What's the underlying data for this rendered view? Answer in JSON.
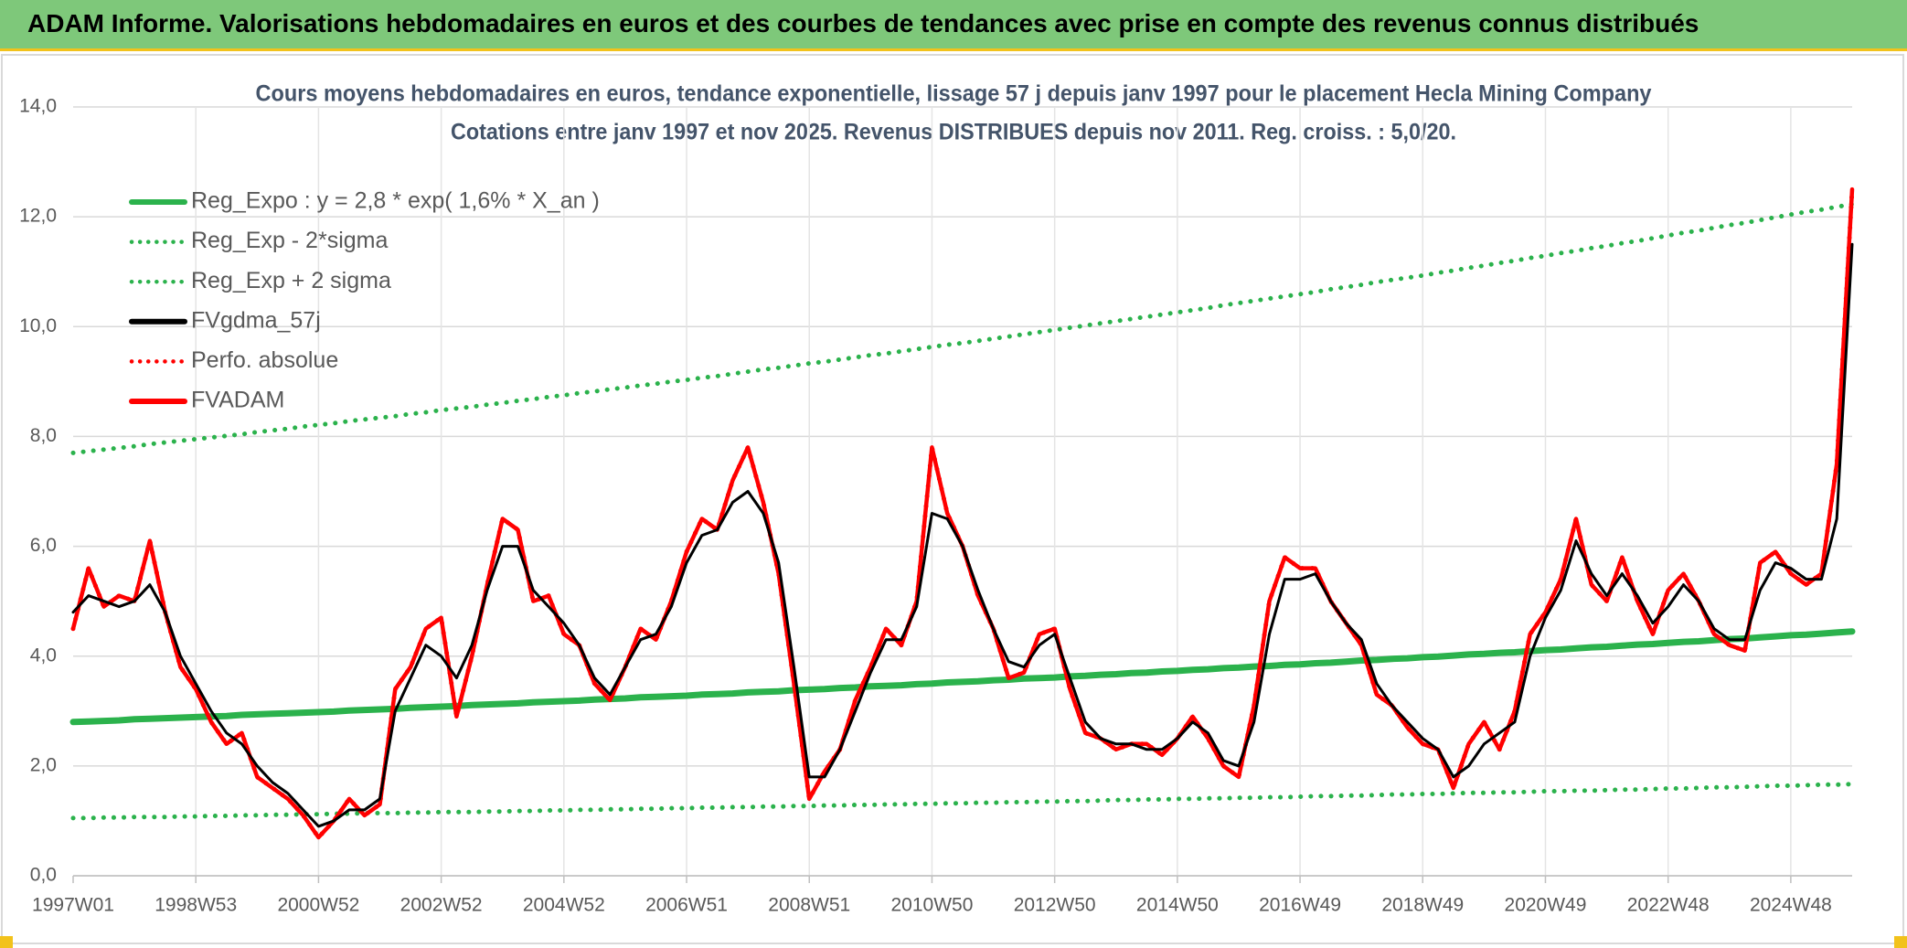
{
  "header": {
    "title": "ADAM Informe. Valorisations hebdomadaires en euros et des courbes de tendances avec prise en compte des revenus connus distribués"
  },
  "chart_data": {
    "type": "line",
    "title": "Cours moyens hebdomadaires en euros, tendance exponentielle, lissage 57 j depuis janv 1997 pour le placement Hecla Mining Company",
    "subtitle": "Cotations entre janv 1997 et nov 2025. Revenus DISTRIBUES depuis nov 2011. Reg. croiss. : 5,0/20.",
    "categories": [
      "1997W01",
      null,
      null,
      null,
      null,
      null,
      null,
      null,
      "1998W53",
      null,
      null,
      null,
      null,
      null,
      null,
      null,
      "2000W52",
      null,
      null,
      null,
      null,
      null,
      null,
      null,
      "2002W52",
      null,
      null,
      null,
      null,
      null,
      null,
      null,
      "2004W52",
      null,
      null,
      null,
      null,
      null,
      null,
      null,
      "2006W51",
      null,
      null,
      null,
      null,
      null,
      null,
      null,
      "2008W51",
      null,
      null,
      null,
      null,
      null,
      null,
      null,
      "2010W50",
      null,
      null,
      null,
      null,
      null,
      null,
      null,
      "2012W50",
      null,
      null,
      null,
      null,
      null,
      null,
      null,
      "2014W50",
      null,
      null,
      null,
      null,
      null,
      null,
      null,
      "2016W49",
      null,
      null,
      null,
      null,
      null,
      null,
      null,
      "2018W49",
      null,
      null,
      null,
      null,
      null,
      null,
      null,
      "2020W49",
      null,
      null,
      null,
      null,
      null,
      null,
      null,
      "2022W48",
      null,
      null,
      null,
      null,
      null,
      null,
      null,
      "2024W48",
      null,
      null,
      null,
      null
    ],
    "ylim": [
      0,
      14
    ],
    "yticks": [
      {
        "value": 0,
        "label": "0,0"
      },
      {
        "value": 2,
        "label": "2,0"
      },
      {
        "value": 4,
        "label": "4,0"
      },
      {
        "value": 6,
        "label": "6,0"
      },
      {
        "value": 8,
        "label": "8,0"
      },
      {
        "value": 10,
        "label": "10,0"
      },
      {
        "value": 12,
        "label": "12,0"
      },
      {
        "value": 14,
        "label": "14,0"
      }
    ],
    "grid": true,
    "legend": "upper left",
    "series": [
      {
        "name": "Reg_Expo : y = 2,8 * exp( 1,6% *  X_an )",
        "color": "#2bb24c",
        "style": "solid",
        "values": [
          2.8,
          2.81,
          2.82,
          2.83,
          2.85,
          2.86,
          2.87,
          2.88,
          2.89,
          2.9,
          2.91,
          2.93,
          2.94,
          2.95,
          2.96,
          2.97,
          2.98,
          2.99,
          3.01,
          3.02,
          3.03,
          3.04,
          3.06,
          3.07,
          3.08,
          3.09,
          3.11,
          3.12,
          3.13,
          3.14,
          3.16,
          3.17,
          3.18,
          3.19,
          3.21,
          3.22,
          3.23,
          3.25,
          3.26,
          3.27,
          3.28,
          3.3,
          3.31,
          3.32,
          3.34,
          3.35,
          3.36,
          3.38,
          3.39,
          3.4,
          3.42,
          3.43,
          3.45,
          3.46,
          3.47,
          3.49,
          3.5,
          3.52,
          3.53,
          3.54,
          3.56,
          3.57,
          3.59,
          3.6,
          3.61,
          3.63,
          3.64,
          3.66,
          3.67,
          3.69,
          3.7,
          3.72,
          3.73,
          3.75,
          3.76,
          3.78,
          3.79,
          3.81,
          3.82,
          3.84,
          3.85,
          3.87,
          3.88,
          3.9,
          3.92,
          3.93,
          3.95,
          3.96,
          3.98,
          3.99,
          4.01,
          4.03,
          4.04,
          4.06,
          4.07,
          4.09,
          4.11,
          4.12,
          4.14,
          4.16,
          4.17,
          4.19,
          4.21,
          4.22,
          4.24,
          4.26,
          4.27,
          4.29,
          4.31,
          4.32,
          4.34,
          4.36,
          4.38,
          4.39,
          4.41,
          4.43,
          4.45
        ]
      },
      {
        "name": "Reg_Exp - 2*sigma",
        "color": "#2bb24c",
        "style": "dotted",
        "values": [
          1.05,
          1.05,
          1.06,
          1.06,
          1.07,
          1.07,
          1.07,
          1.08,
          1.08,
          1.09,
          1.09,
          1.1,
          1.1,
          1.11,
          1.11,
          1.12,
          1.12,
          1.13,
          1.13,
          1.14,
          1.14,
          1.14,
          1.15,
          1.15,
          1.16,
          1.16,
          1.16,
          1.17,
          1.17,
          1.18,
          1.18,
          1.19,
          1.19,
          1.2,
          1.2,
          1.21,
          1.21,
          1.22,
          1.22,
          1.23,
          1.23,
          1.24,
          1.24,
          1.25,
          1.25,
          1.26,
          1.26,
          1.27,
          1.27,
          1.28,
          1.28,
          1.29,
          1.29,
          1.3,
          1.3,
          1.31,
          1.31,
          1.32,
          1.32,
          1.33,
          1.33,
          1.34,
          1.34,
          1.35,
          1.35,
          1.36,
          1.36,
          1.37,
          1.38,
          1.38,
          1.39,
          1.39,
          1.4,
          1.4,
          1.41,
          1.41,
          1.42,
          1.42,
          1.43,
          1.43,
          1.44,
          1.45,
          1.45,
          1.46,
          1.46,
          1.47,
          1.48,
          1.48,
          1.49,
          1.49,
          1.5,
          1.51,
          1.51,
          1.52,
          1.52,
          1.53,
          1.54,
          1.54,
          1.55,
          1.55,
          1.56,
          1.57,
          1.57,
          1.58,
          1.59,
          1.59,
          1.6,
          1.61,
          1.61,
          1.62,
          1.63,
          1.64,
          1.64,
          1.65,
          1.66,
          1.66,
          1.67
        ]
      },
      {
        "name": "Reg_Exp + 2 sigma",
        "color": "#2bb24c",
        "style": "dotted",
        "values": [
          7.7,
          7.73,
          7.76,
          7.79,
          7.82,
          7.86,
          7.89,
          7.92,
          7.95,
          7.98,
          8.01,
          8.04,
          8.08,
          8.11,
          8.14,
          8.18,
          8.21,
          8.24,
          8.28,
          8.31,
          8.34,
          8.37,
          8.41,
          8.44,
          8.48,
          8.51,
          8.54,
          8.58,
          8.61,
          8.65,
          8.68,
          8.72,
          8.75,
          8.79,
          8.82,
          8.86,
          8.89,
          8.93,
          8.96,
          9.0,
          9.03,
          9.07,
          9.1,
          9.14,
          9.18,
          9.22,
          9.25,
          9.29,
          9.33,
          9.36,
          9.4,
          9.44,
          9.48,
          9.51,
          9.55,
          9.59,
          9.63,
          9.67,
          9.7,
          9.74,
          9.78,
          9.82,
          9.86,
          9.9,
          9.94,
          9.98,
          10.02,
          10.06,
          10.1,
          10.14,
          10.18,
          10.22,
          10.26,
          10.3,
          10.34,
          10.39,
          10.43,
          10.47,
          10.51,
          10.55,
          10.59,
          10.63,
          10.68,
          10.72,
          10.76,
          10.81,
          10.85,
          10.89,
          10.93,
          10.98,
          11.02,
          11.07,
          11.11,
          11.16,
          11.2,
          11.25,
          11.29,
          11.34,
          11.38,
          11.43,
          11.47,
          11.52,
          11.56,
          11.61,
          11.66,
          11.71,
          11.75,
          11.8,
          11.85,
          11.89,
          11.94,
          11.99,
          12.04,
          12.09,
          12.13,
          12.18,
          12.23
        ]
      },
      {
        "name": "FVgdma_57j",
        "color": "#000000",
        "style": "solid",
        "values": [
          4.8,
          5.1,
          5.0,
          4.9,
          5.0,
          5.3,
          4.8,
          4.0,
          3.5,
          3.0,
          2.6,
          2.4,
          2.0,
          1.7,
          1.5,
          1.2,
          0.9,
          1.0,
          1.2,
          1.2,
          1.4,
          3.0,
          3.6,
          4.2,
          4.0,
          3.6,
          4.2,
          5.2,
          6.0,
          6.0,
          5.2,
          4.9,
          4.6,
          4.2,
          3.6,
          3.3,
          3.8,
          4.3,
          4.4,
          4.9,
          5.7,
          6.2,
          6.3,
          6.8,
          7.0,
          6.6,
          5.7,
          3.8,
          1.8,
          1.8,
          2.3,
          3.0,
          3.7,
          4.3,
          4.3,
          4.9,
          6.6,
          6.5,
          6.0,
          5.2,
          4.5,
          3.9,
          3.8,
          4.2,
          4.4,
          3.6,
          2.8,
          2.5,
          2.4,
          2.4,
          2.3,
          2.3,
          2.5,
          2.8,
          2.6,
          2.1,
          2.0,
          2.8,
          4.4,
          5.4,
          5.4,
          5.5,
          5.0,
          4.6,
          4.3,
          3.5,
          3.1,
          2.8,
          2.5,
          2.3,
          1.8,
          2.0,
          2.4,
          2.6,
          2.8,
          4.0,
          4.7,
          5.2,
          6.1,
          5.5,
          5.1,
          5.5,
          5.1,
          4.6,
          4.9,
          5.3,
          5.0,
          4.5,
          4.3,
          4.3,
          5.2,
          5.7,
          5.6,
          5.4,
          5.4,
          6.5,
          11.5
        ]
      },
      {
        "name": "Perfo. absolue",
        "color": "#ff0000",
        "style": "dotted",
        "values": [
          4.5,
          5.6,
          4.9,
          5.1,
          5.0,
          6.1,
          4.8,
          3.8,
          3.4,
          2.8,
          2.4,
          2.6,
          1.8,
          1.6,
          1.4,
          1.1,
          0.7,
          1.0,
          1.4,
          1.1,
          1.3,
          3.4,
          3.8,
          4.5,
          4.7,
          2.9,
          4.0,
          5.3,
          6.5,
          6.3,
          5.0,
          5.1,
          4.4,
          4.2,
          3.5,
          3.2,
          3.8,
          4.5,
          4.3,
          5.0,
          5.9,
          6.5,
          6.3,
          7.2,
          7.8,
          6.8,
          5.5,
          3.5,
          1.4,
          1.9,
          2.3,
          3.2,
          3.8,
          4.5,
          4.2,
          5.0,
          7.8,
          6.6,
          6.0,
          5.1,
          4.5,
          3.6,
          3.7,
          4.4,
          4.5,
          3.4,
          2.6,
          2.5,
          2.3,
          2.4,
          2.4,
          2.2,
          2.5,
          2.9,
          2.5,
          2.0,
          1.8,
          3.1,
          5.0,
          5.8,
          5.6,
          5.6,
          5.0,
          4.6,
          4.2,
          3.3,
          3.1,
          2.7,
          2.4,
          2.3,
          1.6,
          2.4,
          2.8,
          2.3,
          3.0,
          4.4,
          4.8,
          5.4,
          6.5,
          5.3,
          5.0,
          5.8,
          5.0,
          4.4,
          5.2,
          5.5,
          5.0,
          4.4,
          4.2,
          4.1,
          5.7,
          5.9,
          5.5,
          5.3,
          5.5,
          7.5,
          12.5
        ]
      },
      {
        "name": "FVADAM",
        "color": "#ff0000",
        "style": "solid",
        "values": [
          4.5,
          5.6,
          4.9,
          5.1,
          5.0,
          6.1,
          4.8,
          3.8,
          3.4,
          2.8,
          2.4,
          2.6,
          1.8,
          1.6,
          1.4,
          1.1,
          0.7,
          1.0,
          1.4,
          1.1,
          1.3,
          3.4,
          3.8,
          4.5,
          4.7,
          2.9,
          4.0,
          5.3,
          6.5,
          6.3,
          5.0,
          5.1,
          4.4,
          4.2,
          3.5,
          3.2,
          3.8,
          4.5,
          4.3,
          5.0,
          5.9,
          6.5,
          6.3,
          7.2,
          7.8,
          6.8,
          5.5,
          3.5,
          1.4,
          1.9,
          2.3,
          3.2,
          3.8,
          4.5,
          4.2,
          5.0,
          7.8,
          6.6,
          6.0,
          5.1,
          4.5,
          3.6,
          3.7,
          4.4,
          4.5,
          3.4,
          2.6,
          2.5,
          2.3,
          2.4,
          2.4,
          2.2,
          2.5,
          2.9,
          2.5,
          2.0,
          1.8,
          3.1,
          5.0,
          5.8,
          5.6,
          5.6,
          5.0,
          4.6,
          4.2,
          3.3,
          3.1,
          2.7,
          2.4,
          2.3,
          1.6,
          2.4,
          2.8,
          2.3,
          3.0,
          4.4,
          4.8,
          5.4,
          6.5,
          5.3,
          5.0,
          5.8,
          5.0,
          4.4,
          5.2,
          5.5,
          5.0,
          4.4,
          4.2,
          4.1,
          5.7,
          5.9,
          5.5,
          5.3,
          5.5,
          7.5,
          12.5
        ]
      }
    ]
  }
}
